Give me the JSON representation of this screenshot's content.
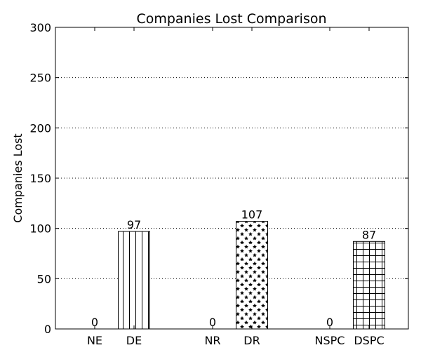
{
  "chart_data": {
    "type": "bar",
    "title": "Companies Lost Comparison",
    "xlabel": "",
    "ylabel": "Companies Lost",
    "ylim": [
      0,
      300
    ],
    "yticks": [
      0,
      50,
      100,
      150,
      200,
      250,
      300
    ],
    "grid": "y-dotted",
    "categories": [
      "NE",
      "DE",
      "NR",
      "DR",
      "NSPC",
      "DSPC"
    ],
    "values": [
      0,
      97,
      0,
      107,
      0,
      87
    ],
    "patterns": [
      "none",
      "vertical-lines",
      "none",
      "stars",
      "none",
      "grid"
    ],
    "bar_color": "#ffffff",
    "edge_color": "#000000"
  }
}
